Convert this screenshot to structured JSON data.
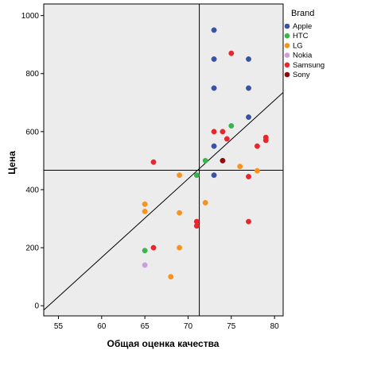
{
  "chart_data": {
    "type": "scatter",
    "xlabel": "Общая оценка качества",
    "ylabel": "Цена",
    "xlim": [
      53.3,
      81
    ],
    "ylim": [
      -35,
      1040
    ],
    "x_ticks": [
      55,
      60,
      65,
      70,
      75,
      80
    ],
    "y_ticks": [
      0,
      200,
      400,
      600,
      800,
      1000
    ],
    "grid": false,
    "background": "#ececec",
    "legend": {
      "title": "Brand",
      "placement": "right",
      "entries": [
        {
          "name": "Apple",
          "color": "#3953a4"
        },
        {
          "name": "HTC",
          "color": "#39b54a"
        },
        {
          "name": "LG",
          "color": "#f7941d"
        },
        {
          "name": "Nokia",
          "color": "#c9a0dc"
        },
        {
          "name": "Samsung",
          "color": "#e8262d"
        },
        {
          "name": "Sony",
          "color": "#8b0a0a"
        }
      ]
    },
    "reference_lines": {
      "vertical_x": 71.3,
      "horizontal_y": 467,
      "fit_line": {
        "x1": 53.3,
        "y1": -15,
        "x2": 81,
        "y2": 735
      }
    },
    "series": [
      {
        "name": "Apple",
        "color": "#3953a4",
        "points": [
          [
            73,
            950
          ],
          [
            73,
            850
          ],
          [
            77,
            850
          ],
          [
            73,
            750
          ],
          [
            77,
            750
          ],
          [
            77,
            650
          ],
          [
            73,
            550
          ],
          [
            73,
            450
          ]
        ]
      },
      {
        "name": "HTC",
        "color": "#39b54a",
        "points": [
          [
            75,
            620
          ],
          [
            72,
            500
          ],
          [
            71,
            450
          ],
          [
            65,
            190
          ]
        ]
      },
      {
        "name": "LG",
        "color": "#f7941d",
        "points": [
          [
            76,
            480
          ],
          [
            78,
            465
          ],
          [
            69,
            450
          ],
          [
            65,
            350
          ],
          [
            65,
            325
          ],
          [
            69,
            320
          ],
          [
            72,
            355
          ],
          [
            69,
            200
          ],
          [
            68,
            100
          ]
        ]
      },
      {
        "name": "Nokia",
        "color": "#c9a0dc",
        "points": [
          [
            65,
            140
          ]
        ]
      },
      {
        "name": "Samsung",
        "color": "#e8262d",
        "points": [
          [
            75,
            870
          ],
          [
            73,
            600
          ],
          [
            74,
            600
          ],
          [
            74.5,
            575
          ],
          [
            78,
            550
          ],
          [
            79,
            580
          ],
          [
            79,
            570
          ],
          [
            66,
            495
          ],
          [
            77,
            445
          ],
          [
            71,
            290
          ],
          [
            71,
            275
          ],
          [
            77,
            290
          ],
          [
            66,
            200
          ]
        ]
      },
      {
        "name": "Sony",
        "color": "#8b0a0a",
        "points": [
          [
            74,
            500
          ]
        ]
      }
    ]
  }
}
